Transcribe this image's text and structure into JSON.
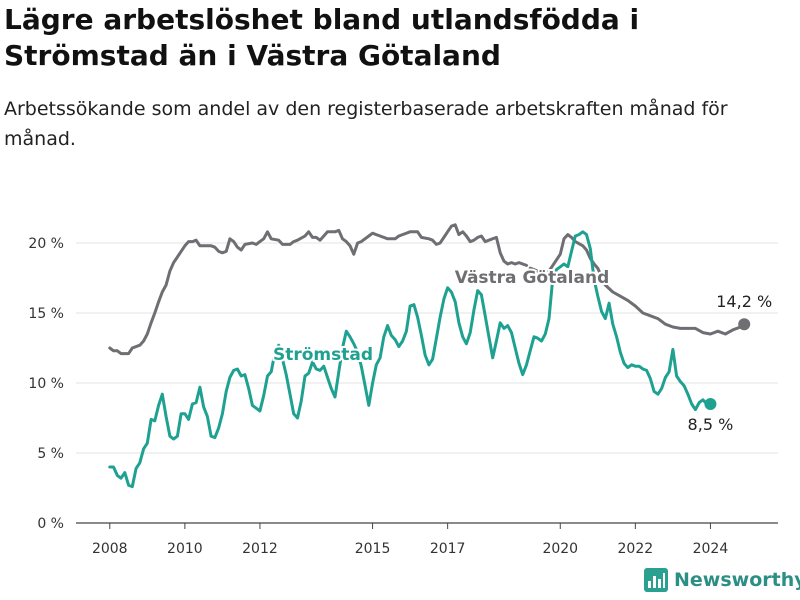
{
  "title": "Lägre arbetslöshet bland utlandsfödda i Strömstad än i Västra Götaland",
  "subtitle": "Arbetssökande som andel av den registerbaserade arbetskraften månad för månad.",
  "brand": {
    "name": "Newsworthy",
    "icon": "bar-chart-icon"
  },
  "chart_data": {
    "type": "line",
    "x_unit": "year (decimal)",
    "xticks": [
      2008,
      2010,
      2012,
      2015,
      2017,
      2020,
      2022,
      2024
    ],
    "xlim": [
      2007.1,
      2025.8
    ],
    "yticks": [
      0,
      5,
      10,
      15,
      20
    ],
    "ytick_labels": [
      "0 %",
      "5 %",
      "10 %",
      "15 %",
      "20 %"
    ],
    "ylim": [
      0,
      22.5
    ],
    "grid": "horizontal",
    "legend": "direct labels on lines",
    "series": [
      {
        "name": "Västra Götaland",
        "color": "#6e6e73",
        "end_label": "14,2 %",
        "points": [
          [
            2008.0,
            12.5
          ],
          [
            2008.1,
            12.3
          ],
          [
            2008.2,
            12.3
          ],
          [
            2008.3,
            12.1
          ],
          [
            2008.4,
            12.1
          ],
          [
            2008.5,
            12.1
          ],
          [
            2008.6,
            12.5
          ],
          [
            2008.8,
            12.7
          ],
          [
            2008.9,
            13.0
          ],
          [
            2009.0,
            13.5
          ],
          [
            2009.1,
            14.3
          ],
          [
            2009.2,
            15.0
          ],
          [
            2009.3,
            15.8
          ],
          [
            2009.4,
            16.5
          ],
          [
            2009.5,
            17.0
          ],
          [
            2009.6,
            18.0
          ],
          [
            2009.7,
            18.6
          ],
          [
            2009.8,
            19.0
          ],
          [
            2009.9,
            19.4
          ],
          [
            2010.0,
            19.8
          ],
          [
            2010.1,
            20.1
          ],
          [
            2010.2,
            20.1
          ],
          [
            2010.3,
            20.2
          ],
          [
            2010.4,
            19.8
          ],
          [
            2010.6,
            19.8
          ],
          [
            2010.7,
            19.8
          ],
          [
            2010.8,
            19.7
          ],
          [
            2010.9,
            19.4
          ],
          [
            2011.0,
            19.3
          ],
          [
            2011.1,
            19.4
          ],
          [
            2011.2,
            20.3
          ],
          [
            2011.3,
            20.1
          ],
          [
            2011.4,
            19.7
          ],
          [
            2011.5,
            19.5
          ],
          [
            2011.6,
            19.9
          ],
          [
            2011.8,
            20.0
          ],
          [
            2011.9,
            19.9
          ],
          [
            2012.0,
            20.1
          ],
          [
            2012.1,
            20.3
          ],
          [
            2012.2,
            20.8
          ],
          [
            2012.3,
            20.3
          ],
          [
            2012.5,
            20.2
          ],
          [
            2012.6,
            19.9
          ],
          [
            2012.8,
            19.9
          ],
          [
            2012.9,
            20.1
          ],
          [
            2013.0,
            20.2
          ],
          [
            2013.2,
            20.5
          ],
          [
            2013.3,
            20.8
          ],
          [
            2013.4,
            20.4
          ],
          [
            2013.5,
            20.4
          ],
          [
            2013.6,
            20.2
          ],
          [
            2013.7,
            20.5
          ],
          [
            2013.8,
            20.8
          ],
          [
            2014.0,
            20.8
          ],
          [
            2014.1,
            20.9
          ],
          [
            2014.2,
            20.3
          ],
          [
            2014.3,
            20.1
          ],
          [
            2014.4,
            19.8
          ],
          [
            2014.5,
            19.2
          ],
          [
            2014.6,
            20.0
          ],
          [
            2014.7,
            20.1
          ],
          [
            2014.9,
            20.5
          ],
          [
            2015.0,
            20.7
          ],
          [
            2015.1,
            20.6
          ],
          [
            2015.2,
            20.5
          ],
          [
            2015.3,
            20.4
          ],
          [
            2015.4,
            20.3
          ],
          [
            2015.6,
            20.3
          ],
          [
            2015.7,
            20.5
          ],
          [
            2015.8,
            20.6
          ],
          [
            2016.0,
            20.8
          ],
          [
            2016.2,
            20.8
          ],
          [
            2016.3,
            20.4
          ],
          [
            2016.5,
            20.3
          ],
          [
            2016.6,
            20.2
          ],
          [
            2016.7,
            19.9
          ],
          [
            2016.8,
            20.0
          ],
          [
            2016.9,
            20.4
          ],
          [
            2017.0,
            20.8
          ],
          [
            2017.1,
            21.2
          ],
          [
            2017.2,
            21.3
          ],
          [
            2017.3,
            20.6
          ],
          [
            2017.4,
            20.8
          ],
          [
            2017.5,
            20.5
          ],
          [
            2017.6,
            20.1
          ],
          [
            2017.7,
            20.2
          ],
          [
            2017.8,
            20.4
          ],
          [
            2017.9,
            20.5
          ],
          [
            2018.0,
            20.1
          ],
          [
            2018.1,
            20.2
          ],
          [
            2018.3,
            20.4
          ],
          [
            2018.4,
            19.3
          ],
          [
            2018.5,
            18.7
          ],
          [
            2018.6,
            18.5
          ],
          [
            2018.7,
            18.6
          ],
          [
            2018.8,
            18.5
          ],
          [
            2018.9,
            18.6
          ],
          [
            2019.0,
            18.5
          ],
          [
            2019.1,
            18.4
          ],
          null,
          [
            2019.2,
            18.2
          ],
          [
            2019.4,
            18.0
          ],
          [
            2019.6,
            17.6
          ],
          [
            2019.8,
            18.4
          ],
          [
            2020.0,
            19.2
          ],
          [
            2020.1,
            20.3
          ],
          [
            2020.2,
            20.6
          ],
          [
            2020.3,
            20.4
          ],
          [
            2020.4,
            20.1
          ],
          [
            2020.6,
            19.8
          ],
          [
            2020.7,
            19.5
          ],
          [
            2020.8,
            18.9
          ],
          [
            2020.9,
            18.5
          ],
          [
            2021.0,
            18.2
          ],
          [
            2021.1,
            17.6
          ],
          [
            2021.2,
            17.0
          ],
          [
            2021.4,
            16.5
          ],
          [
            2021.6,
            16.2
          ],
          [
            2021.8,
            15.9
          ],
          [
            2022.0,
            15.5
          ],
          [
            2022.2,
            15.0
          ],
          [
            2022.4,
            14.8
          ],
          [
            2022.6,
            14.6
          ],
          [
            2022.8,
            14.2
          ],
          [
            2023.0,
            14.0
          ],
          [
            2023.2,
            13.9
          ],
          [
            2023.4,
            13.9
          ],
          [
            2023.6,
            13.9
          ],
          [
            2023.8,
            13.6
          ],
          [
            2024.0,
            13.5
          ],
          [
            2024.2,
            13.7
          ],
          [
            2024.4,
            13.5
          ],
          [
            2024.6,
            13.8
          ],
          [
            2024.8,
            14.0
          ],
          [
            2024.9,
            14.2
          ]
        ]
      },
      {
        "name": "Strömstad",
        "color": "#1fa192",
        "end_label": "8,5 %",
        "points": [
          [
            2008.0,
            4.0
          ],
          [
            2008.1,
            4.0
          ],
          [
            2008.2,
            3.4
          ],
          [
            2008.3,
            3.2
          ],
          [
            2008.4,
            3.6
          ],
          [
            2008.5,
            2.7
          ],
          [
            2008.6,
            2.6
          ],
          [
            2008.7,
            3.9
          ],
          [
            2008.8,
            4.3
          ],
          [
            2008.9,
            5.3
          ],
          [
            2009.0,
            5.7
          ],
          [
            2009.1,
            7.4
          ],
          [
            2009.2,
            7.3
          ],
          [
            2009.3,
            8.4
          ],
          [
            2009.4,
            9.2
          ],
          [
            2009.5,
            7.6
          ],
          [
            2009.6,
            6.2
          ],
          [
            2009.7,
            6.0
          ],
          [
            2009.8,
            6.2
          ],
          [
            2009.9,
            7.8
          ],
          [
            2010.0,
            7.8
          ],
          [
            2010.1,
            7.4
          ],
          [
            2010.2,
            8.5
          ],
          [
            2010.3,
            8.6
          ],
          [
            2010.4,
            9.7
          ],
          [
            2010.5,
            8.3
          ],
          [
            2010.6,
            7.6
          ],
          [
            2010.7,
            6.2
          ],
          [
            2010.8,
            6.1
          ],
          [
            2010.9,
            6.8
          ],
          [
            2011.0,
            7.8
          ],
          [
            2011.1,
            9.4
          ],
          [
            2011.2,
            10.4
          ],
          [
            2011.3,
            10.9
          ],
          [
            2011.4,
            11.0
          ],
          [
            2011.5,
            10.5
          ],
          [
            2011.6,
            10.6
          ],
          [
            2011.7,
            9.6
          ],
          [
            2011.8,
            8.4
          ],
          [
            2011.9,
            8.2
          ],
          [
            2012.0,
            8.0
          ],
          [
            2012.1,
            9.1
          ],
          [
            2012.2,
            10.5
          ],
          [
            2012.3,
            10.8
          ],
          [
            2012.4,
            12.2
          ],
          [
            2012.5,
            12.7
          ],
          [
            2012.6,
            11.7
          ],
          [
            2012.7,
            10.6
          ],
          [
            2012.8,
            9.2
          ],
          [
            2012.9,
            7.8
          ],
          [
            2013.0,
            7.5
          ],
          [
            2013.1,
            8.7
          ],
          [
            2013.2,
            10.5
          ],
          [
            2013.3,
            10.7
          ],
          [
            2013.4,
            11.5
          ],
          [
            2013.5,
            11.0
          ],
          [
            2013.6,
            10.9
          ],
          [
            2013.7,
            11.2
          ],
          [
            2013.8,
            10.4
          ],
          [
            2013.9,
            9.6
          ],
          [
            2014.0,
            9.0
          ],
          [
            2014.1,
            10.8
          ],
          [
            2014.2,
            12.5
          ],
          [
            2014.3,
            13.7
          ],
          [
            2014.4,
            13.3
          ],
          [
            2014.5,
            12.8
          ],
          [
            2014.6,
            12.2
          ],
          [
            2014.7,
            11.2
          ],
          [
            2014.8,
            9.8
          ],
          [
            2014.9,
            8.4
          ],
          [
            2015.0,
            10.0
          ],
          [
            2015.1,
            11.3
          ],
          [
            2015.2,
            11.8
          ],
          [
            2015.3,
            13.3
          ],
          [
            2015.4,
            14.1
          ],
          [
            2015.5,
            13.4
          ],
          [
            2015.6,
            13.1
          ],
          [
            2015.7,
            12.6
          ],
          [
            2015.8,
            13.0
          ],
          [
            2015.9,
            13.7
          ],
          [
            2016.0,
            15.5
          ],
          [
            2016.1,
            15.6
          ],
          [
            2016.2,
            14.7
          ],
          [
            2016.3,
            13.4
          ],
          [
            2016.4,
            12.0
          ],
          [
            2016.5,
            11.3
          ],
          [
            2016.6,
            11.7
          ],
          [
            2016.7,
            13.2
          ],
          [
            2016.8,
            14.7
          ],
          [
            2016.9,
            16.0
          ],
          [
            2017.0,
            16.8
          ],
          [
            2017.1,
            16.5
          ],
          [
            2017.2,
            15.8
          ],
          [
            2017.3,
            14.3
          ],
          [
            2017.4,
            13.3
          ],
          [
            2017.5,
            12.8
          ],
          [
            2017.6,
            13.6
          ],
          [
            2017.7,
            15.2
          ],
          [
            2017.8,
            16.6
          ],
          [
            2017.9,
            16.3
          ],
          [
            2018.0,
            14.8
          ],
          [
            2018.1,
            13.3
          ],
          [
            2018.2,
            11.8
          ],
          [
            2018.3,
            13.0
          ],
          [
            2018.4,
            14.3
          ],
          [
            2018.5,
            13.9
          ],
          [
            2018.6,
            14.1
          ],
          [
            2018.7,
            13.6
          ],
          [
            2018.8,
            12.5
          ],
          [
            2018.9,
            11.4
          ],
          [
            2019.0,
            10.6
          ],
          [
            2019.1,
            11.3
          ],
          [
            2019.2,
            12.3
          ],
          [
            2019.3,
            13.3
          ],
          [
            2019.4,
            13.2
          ],
          [
            2019.5,
            13.0
          ],
          [
            2019.6,
            13.5
          ],
          [
            2019.7,
            14.6
          ],
          [
            2019.8,
            17.5
          ],
          [
            2019.9,
            18.1
          ],
          [
            2020.0,
            18.3
          ],
          [
            2020.1,
            18.5
          ],
          [
            2020.2,
            18.3
          ],
          [
            2020.3,
            19.4
          ],
          [
            2020.4,
            20.5
          ],
          [
            2020.5,
            20.6
          ],
          [
            2020.6,
            20.8
          ],
          [
            2020.7,
            20.6
          ],
          [
            2020.8,
            19.6
          ],
          [
            2020.9,
            17.4
          ],
          [
            2021.0,
            16.2
          ],
          [
            2021.1,
            15.1
          ],
          [
            2021.2,
            14.6
          ],
          [
            2021.3,
            15.7
          ],
          [
            2021.4,
            14.2
          ],
          [
            2021.5,
            13.3
          ],
          [
            2021.6,
            12.2
          ],
          [
            2021.7,
            11.4
          ],
          [
            2021.8,
            11.1
          ],
          [
            2021.9,
            11.3
          ],
          [
            2022.0,
            11.2
          ],
          [
            2022.1,
            11.2
          ],
          [
            2022.2,
            11.0
          ],
          [
            2022.3,
            10.9
          ],
          [
            2022.4,
            10.3
          ],
          [
            2022.5,
            9.4
          ],
          [
            2022.6,
            9.2
          ],
          [
            2022.7,
            9.6
          ],
          [
            2022.8,
            10.4
          ],
          [
            2022.9,
            10.8
          ],
          [
            2023.0,
            12.4
          ],
          [
            2023.1,
            10.5
          ],
          [
            2023.2,
            10.1
          ],
          [
            2023.3,
            9.8
          ],
          [
            2023.4,
            9.2
          ],
          [
            2023.5,
            8.5
          ],
          [
            2023.6,
            8.1
          ],
          [
            2023.7,
            8.6
          ],
          [
            2023.8,
            8.8
          ],
          [
            2023.9,
            8.5
          ],
          [
            2024.0,
            8.5
          ]
        ]
      }
    ]
  }
}
